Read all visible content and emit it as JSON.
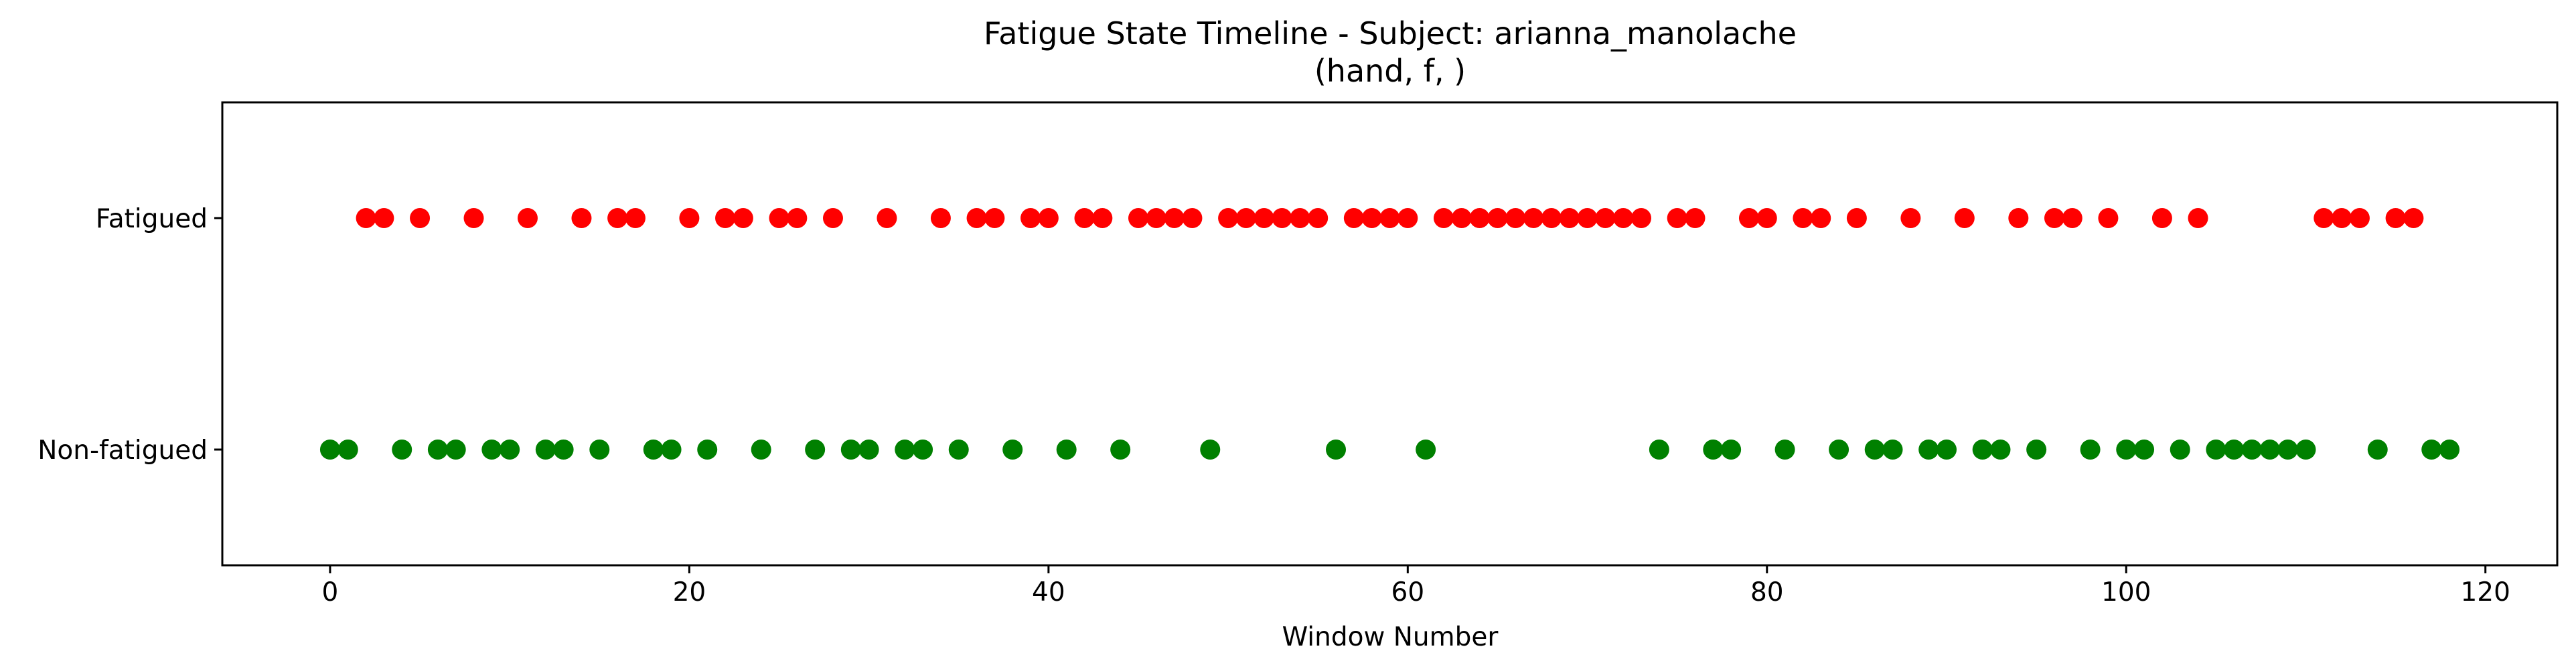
{
  "chart_data": {
    "type": "scatter",
    "title": "Fatigue State Timeline - Subject: arianna_manolache",
    "subtitle": "(hand, f, )",
    "xlabel": "Window Number",
    "ylabel": "",
    "xlim": [
      -6,
      124
    ],
    "ylim": [
      -0.5,
      1.5
    ],
    "x_ticks": [
      0,
      20,
      40,
      60,
      80,
      100,
      120
    ],
    "y_ticks": [
      {
        "value": 1,
        "label": "Fatigued"
      },
      {
        "value": 0,
        "label": "Non-fatigued"
      }
    ],
    "grid": false,
    "colors": {
      "fatigued": "#ff0000",
      "non_fatigued": "#008000"
    },
    "series": [
      {
        "state": 1,
        "color": "#ff0000",
        "x": [
          2,
          3,
          5,
          8,
          11,
          14,
          16,
          17,
          20,
          22,
          23,
          25,
          26,
          28,
          31,
          34,
          36,
          37,
          39,
          40,
          42,
          43,
          45,
          46,
          47,
          48,
          50,
          51,
          52,
          53,
          54,
          55,
          57,
          58,
          59,
          60,
          62,
          63,
          64,
          65,
          66,
          67,
          68,
          69,
          70,
          71,
          72,
          73,
          75,
          76,
          79,
          80,
          82,
          83,
          85,
          88,
          91,
          94,
          96,
          97,
          99,
          102,
          104,
          111,
          112,
          113,
          115,
          116
        ]
      },
      {
        "state": 0,
        "color": "#008000",
        "x": [
          0,
          1,
          4,
          6,
          7,
          9,
          10,
          12,
          13,
          15,
          18,
          19,
          21,
          24,
          27,
          29,
          30,
          32,
          33,
          35,
          38,
          41,
          44,
          49,
          56,
          61,
          74,
          77,
          78,
          81,
          84,
          86,
          87,
          89,
          90,
          92,
          93,
          95,
          98,
          100,
          101,
          103,
          105,
          106,
          107,
          108,
          109,
          110,
          114,
          117,
          118
        ]
      }
    ]
  }
}
